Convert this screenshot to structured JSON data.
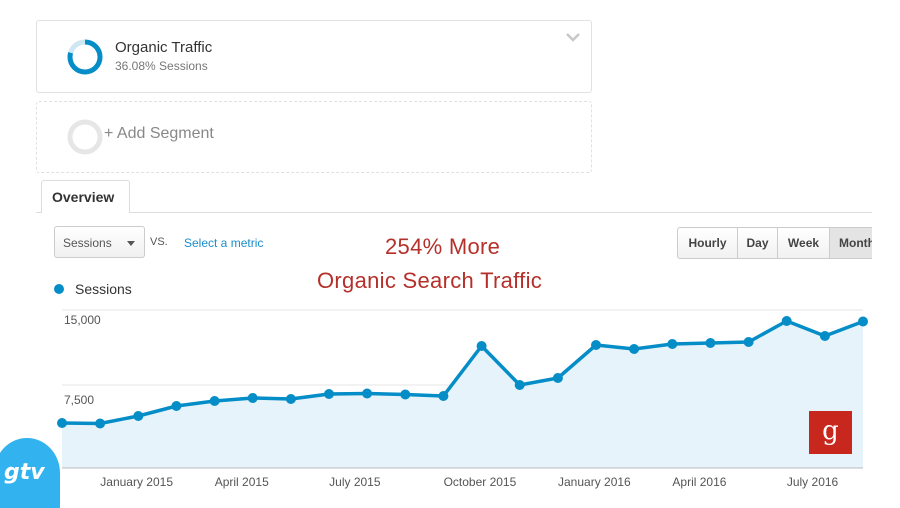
{
  "segments": {
    "primary": {
      "title": "Organic Traffic",
      "subtitle": "36.08% Sessions",
      "ring_percent": 36.08,
      "color": "#058dc7"
    },
    "add_label": "+ Add Segment"
  },
  "tabs": {
    "overview": "Overview"
  },
  "controls": {
    "metric_dropdown": "Sessions",
    "vs_label": "VS.",
    "select_metric": "Select a metric",
    "interval_buttons": [
      "Hourly",
      "Day",
      "Week",
      "Month"
    ],
    "selected_interval": "Month"
  },
  "promo": {
    "line1": "254% More",
    "line2": "Organic Search Traffic",
    "color": "#b5302a"
  },
  "logo_letter": "g",
  "watermark": "gtv",
  "chart_data": {
    "type": "area",
    "legend": [
      "Sessions"
    ],
    "series": [
      {
        "name": "Sessions",
        "color": "#058dc7",
        "values": [
          4500,
          4450,
          5200,
          6200,
          6700,
          7000,
          6900,
          7400,
          7450,
          7350,
          7200,
          12200,
          8300,
          9000,
          12300,
          11900,
          12400,
          12500,
          12600,
          14700,
          13200,
          14650
        ]
      }
    ],
    "y_ticks": [
      {
        "value": 15000,
        "label": "15,000"
      },
      {
        "value": 7500,
        "label": "7,500"
      }
    ],
    "ylim": [
      0,
      15000
    ],
    "x_labels": [
      {
        "index": 2,
        "label": "January 2015"
      },
      {
        "index": 5,
        "label": "April 2015"
      },
      {
        "index": 8,
        "label": "July 2015"
      },
      {
        "index": 11,
        "label": "October 2015"
      },
      {
        "index": 14,
        "label": "January 2016"
      },
      {
        "index": 17,
        "label": "April 2016"
      },
      {
        "index": 20,
        "label": "July 2016"
      }
    ],
    "grid": true
  }
}
